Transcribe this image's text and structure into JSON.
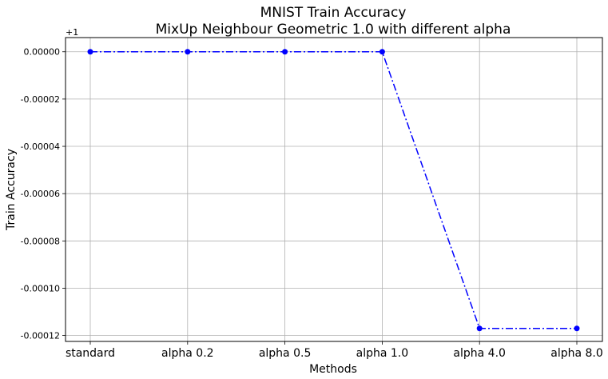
{
  "chart_data": {
    "type": "line",
    "title": "MNIST Train Accuracy",
    "subtitle": "MixUp Neighbour Geometric 1.0 with different alpha",
    "xlabel": "Methods",
    "ylabel": "Train Accuracy",
    "y_offset_label": "+1",
    "categories": [
      "standard",
      "alpha 0.2",
      "alpha 0.5",
      "alpha 1.0",
      "alpha 4.0",
      "alpha 8.0"
    ],
    "series": [
      {
        "values": [
          1.0,
          1.0,
          1.0,
          1.0,
          0.999883,
          0.999883
        ],
        "color": "#0000ff",
        "linestyle": "dash-dot",
        "marker": "circle"
      }
    ],
    "yticks": [
      0.0,
      -2e-05,
      -4e-05,
      -6e-05,
      -8e-05,
      -0.0001,
      -0.00012
    ],
    "ytick_labels": [
      "0.00000",
      "-0.00002",
      "-0.00004",
      "-0.00006",
      "-0.00008",
      "-0.00010",
      "-0.00012"
    ],
    "ylim_offset": [
      -0.0001225,
      6e-06
    ],
    "grid": true
  }
}
